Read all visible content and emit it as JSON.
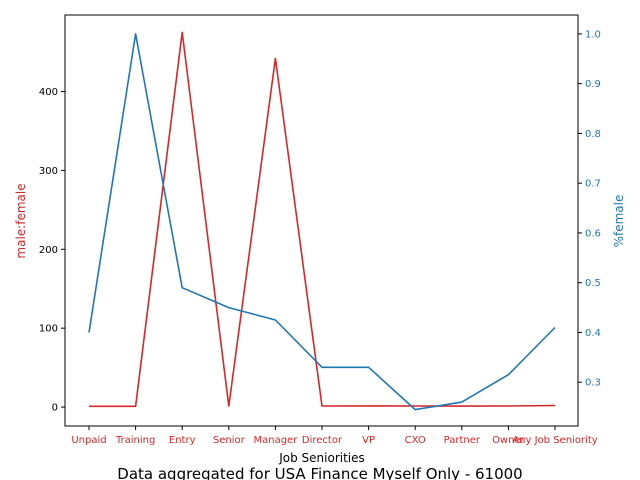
{
  "chart_data": {
    "type": "line",
    "title": "",
    "caption": "Data aggregated for USA Finance Myself Only - 61000",
    "xlabel": "Job Seniorities",
    "categories": [
      "Unpaid",
      "Training",
      "Entry",
      "Senior",
      "Manager",
      "Director",
      "VP",
      "CXO",
      "Partner",
      "Owner",
      "Any Job Seniority"
    ],
    "y_left": {
      "label": "male:female",
      "color": "#d62728",
      "ylim": [
        -24,
        497
      ],
      "ticks": [
        0,
        100,
        200,
        300,
        400
      ]
    },
    "y_right": {
      "label": "%⁠female",
      "color": "#1f77b4",
      "ylim": [
        0.212,
        1.038
      ],
      "ticks": [
        0.3,
        0.4,
        0.5,
        0.6,
        0.7,
        0.8,
        0.9,
        1.0
      ],
      "tick_labels": [
        "0.3",
        "0.4",
        "0.5",
        "0.6",
        "0.7",
        "0.8",
        "0.9",
        "1.0"
      ]
    },
    "series": [
      {
        "axis": "left",
        "color": "#d62728",
        "values": [
          1.0,
          1.0,
          475,
          1.2,
          442,
          1.4,
          1.5,
          1.3,
          1.2,
          1.4,
          2.0
        ]
      },
      {
        "axis": "right",
        "color": "#1f77b4",
        "values": [
          0.4,
          1.0,
          0.49,
          0.45,
          0.425,
          0.33,
          0.33,
          0.245,
          0.26,
          0.315,
          0.41
        ]
      }
    ],
    "grid": false,
    "legend": "none"
  }
}
